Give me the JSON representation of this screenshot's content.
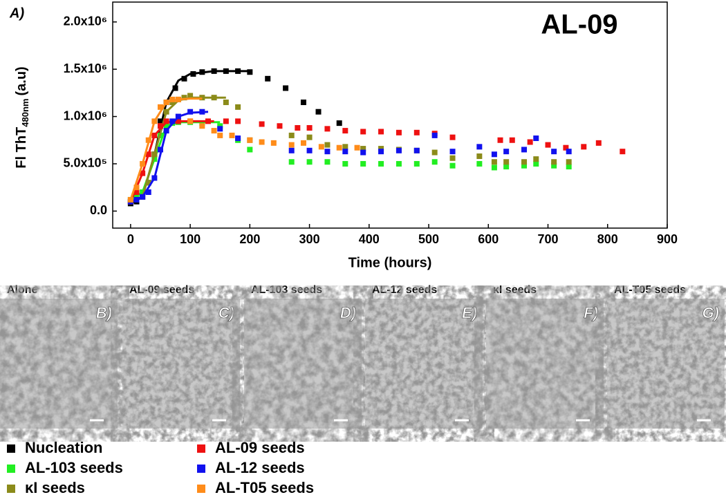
{
  "chart_data": {
    "type": "scatter",
    "panel_label": "A)",
    "annotation": "AL-09",
    "x_label": "Time (hours)",
    "y_label": "Fl ThT",
    "y_label_sub": "480nm",
    "y_label_unit": "(a.u)",
    "xlim": [
      -30,
      900
    ],
    "xticks": [
      0,
      100,
      200,
      300,
      400,
      500,
      600,
      700,
      800,
      900
    ],
    "ylim": [
      -180000,
      2210000
    ],
    "yticks": [
      {
        "value": 0,
        "label": "0.0"
      },
      {
        "value": 500000,
        "label": "5.0x10⁵"
      },
      {
        "value": 1000000,
        "label": "1.0x10⁶"
      },
      {
        "value": 1500000,
        "label": "1.5x10⁶"
      },
      {
        "value": 2000000,
        "label": "2.0x10⁶"
      }
    ],
    "series": [
      {
        "name": "Nucleation",
        "color": "#000000",
        "x": [
          0,
          10,
          20,
          30,
          40,
          50,
          60,
          75,
          90,
          105,
          120,
          140,
          160,
          180,
          200,
          230,
          260,
          290,
          315,
          350
        ],
        "values": [
          80000,
          100000,
          150000,
          300000,
          600000,
          950000,
          1150000,
          1300000,
          1400000,
          1450000,
          1470000,
          1480000,
          1480000,
          1480000,
          1470000,
          1400000,
          1300000,
          1150000,
          1050000,
          930000
        ],
        "fit": {
          "x": [
            0,
            20,
            40,
            60,
            80,
            100,
            140,
            200
          ],
          "values": [
            80000,
            150000,
            600000,
            1150000,
            1380000,
            1450000,
            1480000,
            1480000
          ]
        }
      },
      {
        "name": "AL-103 seeds",
        "color": "#22ee22",
        "x": [
          0,
          10,
          20,
          30,
          40,
          50,
          60,
          70,
          80,
          100,
          120,
          150,
          180,
          200,
          270,
          300,
          330,
          360,
          390,
          420,
          450,
          480,
          510,
          540,
          585,
          610,
          630,
          660,
          680,
          710,
          735
        ],
        "values": [
          120000,
          150000,
          200000,
          300000,
          550000,
          800000,
          900000,
          930000,
          940000,
          940000,
          930000,
          900000,
          750000,
          650000,
          520000,
          520000,
          520000,
          500000,
          500000,
          500000,
          500000,
          500000,
          520000,
          480000,
          500000,
          460000,
          470000,
          480000,
          500000,
          480000,
          470000
        ],
        "fit": {
          "x": [
            0,
            20,
            40,
            60,
            80,
            100,
            150
          ],
          "values": [
            120000,
            200000,
            550000,
            900000,
            940000,
            940000,
            940000
          ]
        }
      },
      {
        "name": "κI seeds",
        "color": "#8b8b1a",
        "x": [
          0,
          10,
          20,
          30,
          40,
          50,
          60,
          70,
          80,
          90,
          100,
          120,
          140,
          160,
          180,
          200,
          270,
          300,
          330,
          360,
          390,
          420,
          450,
          480,
          510,
          540,
          585,
          610,
          630,
          660,
          680,
          710,
          735
        ],
        "values": [
          100000,
          120000,
          150000,
          300000,
          600000,
          900000,
          1050000,
          1150000,
          1180000,
          1200000,
          1220000,
          1200000,
          1200000,
          1150000,
          1100000,
          750000,
          800000,
          780000,
          700000,
          680000,
          660000,
          660000,
          650000,
          640000,
          620000,
          560000,
          580000,
          520000,
          520000,
          520000,
          550000,
          520000,
          520000
        ],
        "fit": {
          "x": [
            0,
            20,
            40,
            60,
            80,
            100,
            140,
            160
          ],
          "values": [
            100000,
            150000,
            600000,
            1050000,
            1170000,
            1200000,
            1200000,
            1200000
          ]
        }
      },
      {
        "name": "AL-09 seeds",
        "color": "#ee1111",
        "x": [
          0,
          10,
          20,
          30,
          40,
          50,
          60,
          80,
          100,
          130,
          160,
          180,
          220,
          250,
          280,
          300,
          330,
          360,
          390,
          420,
          450,
          480,
          510,
          540,
          620,
          640,
          670,
          700,
          730,
          760,
          785,
          825
        ],
        "values": [
          100000,
          200000,
          400000,
          600000,
          800000,
          900000,
          950000,
          950000,
          950000,
          950000,
          950000,
          950000,
          920000,
          900000,
          880000,
          880000,
          870000,
          850000,
          840000,
          840000,
          830000,
          830000,
          820000,
          780000,
          750000,
          750000,
          730000,
          700000,
          670000,
          680000,
          720000,
          630000
        ],
        "fit": {
          "x": [
            0,
            20,
            40,
            60,
            80,
            100,
            140
          ],
          "values": [
            100000,
            400000,
            800000,
            940000,
            950000,
            950000,
            950000
          ]
        }
      },
      {
        "name": "AL-12 seeds",
        "color": "#1111ee",
        "x": [
          0,
          10,
          20,
          30,
          40,
          50,
          60,
          70,
          80,
          100,
          120,
          150,
          180,
          270,
          300,
          330,
          360,
          390,
          420,
          450,
          480,
          510,
          540,
          585,
          610,
          630,
          660,
          680,
          710,
          735
        ],
        "values": [
          100000,
          120000,
          150000,
          200000,
          350000,
          650000,
          850000,
          950000,
          1000000,
          1050000,
          1050000,
          870000,
          770000,
          640000,
          640000,
          630000,
          630000,
          620000,
          630000,
          640000,
          640000,
          800000,
          630000,
          680000,
          600000,
          630000,
          650000,
          770000,
          630000,
          630000
        ],
        "fit": {
          "x": [
            0,
            20,
            40,
            60,
            80,
            100,
            130
          ],
          "values": [
            100000,
            150000,
            350000,
            850000,
            1000000,
            1040000,
            1050000
          ]
        }
      },
      {
        "name": "AL-T05 seeds",
        "color": "#ff8c1a",
        "x": [
          0,
          10,
          20,
          30,
          40,
          50,
          60,
          70,
          80,
          100,
          120,
          140,
          150,
          170,
          200,
          220,
          240,
          270,
          290,
          320,
          350,
          380
        ],
        "values": [
          120000,
          250000,
          500000,
          750000,
          950000,
          1100000,
          1150000,
          1180000,
          1180000,
          950000,
          900000,
          850000,
          800000,
          800000,
          750000,
          730000,
          720000,
          700000,
          720000,
          680000,
          670000,
          670000
        ],
        "fit": {
          "x": [
            0,
            20,
            40,
            60,
            80,
            100,
            120
          ],
          "values": [
            120000,
            500000,
            950000,
            1150000,
            1180000,
            1190000,
            1190000
          ]
        }
      }
    ]
  },
  "panels": [
    {
      "label": "Alone",
      "letter": "B)"
    },
    {
      "label": "AL-09  seeds",
      "letter": "C)"
    },
    {
      "label": "AL-103 seeds",
      "letter": "D)"
    },
    {
      "label": "AL-12 seeds",
      "letter": "E)"
    },
    {
      "label": "κI  seeds",
      "letter": "F)"
    },
    {
      "label": "AL-T05 seeds",
      "letter": "G)"
    }
  ]
}
